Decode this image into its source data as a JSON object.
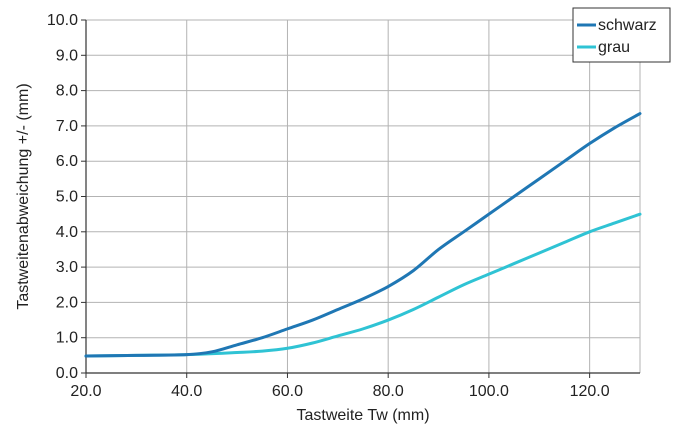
{
  "chart_data": {
    "type": "line",
    "xlabel": "Tastweite Tw (mm)",
    "ylabel": "Tastweitenabweichung +/- (mm)",
    "xlim": [
      20,
      130
    ],
    "ylim": [
      0,
      10
    ],
    "x_ticks": [
      20,
      40,
      60,
      80,
      100,
      120
    ],
    "x_tick_labels": [
      "20.0",
      "40.0",
      "60.0",
      "80.0",
      "100.0",
      "120.0"
    ],
    "y_ticks": [
      0,
      1,
      2,
      3,
      4,
      5,
      6,
      7,
      8,
      9,
      10
    ],
    "y_tick_labels": [
      "0.0",
      "1.0",
      "2.0",
      "3.0",
      "4.0",
      "5.0",
      "6.0",
      "7.0",
      "8.0",
      "9.0",
      "10.0"
    ],
    "grid": true,
    "legend_position": "top-right",
    "series": [
      {
        "name": "schwarz",
        "color": "#1f77b4",
        "x": [
          20,
          30,
          40,
          45,
          50,
          55,
          60,
          65,
          70,
          75,
          80,
          85,
          90,
          95,
          100,
          105,
          110,
          115,
          120,
          125,
          130
        ],
        "y": [
          0.48,
          0.5,
          0.52,
          0.6,
          0.8,
          1.0,
          1.25,
          1.5,
          1.8,
          2.1,
          2.45,
          2.9,
          3.5,
          4.0,
          4.5,
          5.0,
          5.5,
          6.0,
          6.5,
          6.95,
          7.35
        ]
      },
      {
        "name": "grau",
        "color": "#2fc3d4",
        "x": [
          20,
          30,
          40,
          50,
          55,
          60,
          65,
          70,
          75,
          80,
          85,
          90,
          95,
          100,
          105,
          110,
          115,
          120,
          125,
          130
        ],
        "y": [
          0.48,
          0.5,
          0.52,
          0.58,
          0.62,
          0.7,
          0.85,
          1.05,
          1.25,
          1.5,
          1.8,
          2.15,
          2.5,
          2.8,
          3.1,
          3.4,
          3.7,
          4.0,
          4.25,
          4.5
        ]
      }
    ]
  }
}
